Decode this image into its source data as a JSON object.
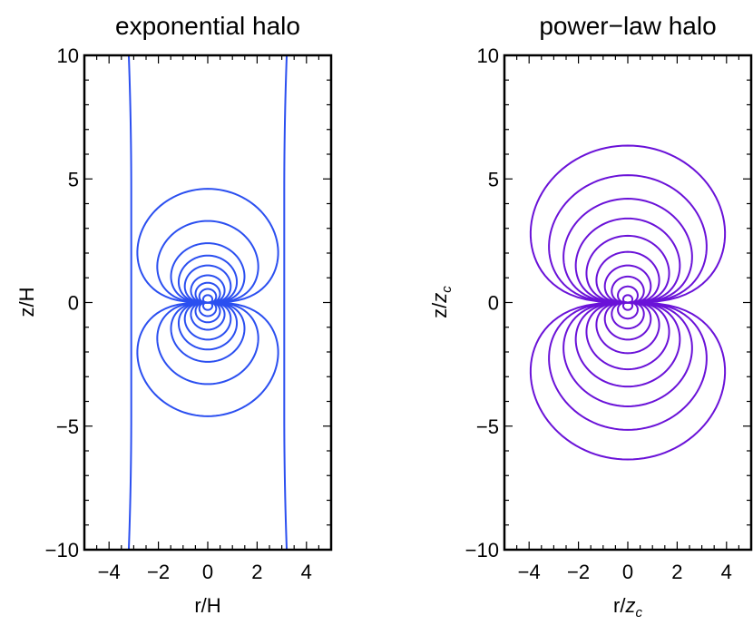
{
  "colors": {
    "blue": "#2b4ff0",
    "purple": "#6a12d8",
    "frame": "#000000"
  },
  "chart_data": [
    {
      "type": "line",
      "title": "exponential halo",
      "xlabel": "r/H",
      "ylabel": "z/H",
      "xlim": [
        -5,
        5
      ],
      "ylim": [
        -10,
        10
      ],
      "xticks": [
        -4,
        -2,
        0,
        2,
        4
      ],
      "yticks": [
        -10,
        -5,
        0,
        5,
        10
      ],
      "xtick_labels": [
        "−4",
        "−2",
        "0",
        "2",
        "4"
      ],
      "ytick_labels": [
        "−10",
        "−5",
        "0",
        "5",
        "10"
      ],
      "color": "#2b4ff0",
      "grid": false,
      "closed_contours_half_height": [
        4.6,
        3.3,
        2.4,
        1.9,
        1.5,
        1.1,
        0.8,
        0.55,
        0.3
      ],
      "open_contour_asymptote_r": 3.2,
      "open_contour_midplane_r": 3.1
    },
    {
      "type": "line",
      "title": "power−law halo",
      "xlabel": "r/",
      "xlabel_sub": "c",
      "xlabel_var": "z",
      "ylabel": "z/",
      "ylabel_sub": "c",
      "ylabel_var": "z",
      "xlim": [
        -5,
        5
      ],
      "ylim": [
        -10,
        10
      ],
      "xticks": [
        -4,
        -2,
        0,
        2,
        4
      ],
      "yticks": [
        -10,
        -5,
        0,
        5,
        10
      ],
      "xtick_labels": [
        "−4",
        "−2",
        "0",
        "2",
        "4"
      ],
      "ytick_labels": [
        "−10",
        "−5",
        "0",
        "5",
        "10"
      ],
      "color": "#6a12d8",
      "grid": false,
      "closed_contours_half_height": [
        6.35,
        5.15,
        4.2,
        3.4,
        2.7,
        2.05,
        1.5,
        1.05,
        0.65,
        0.3
      ]
    }
  ]
}
